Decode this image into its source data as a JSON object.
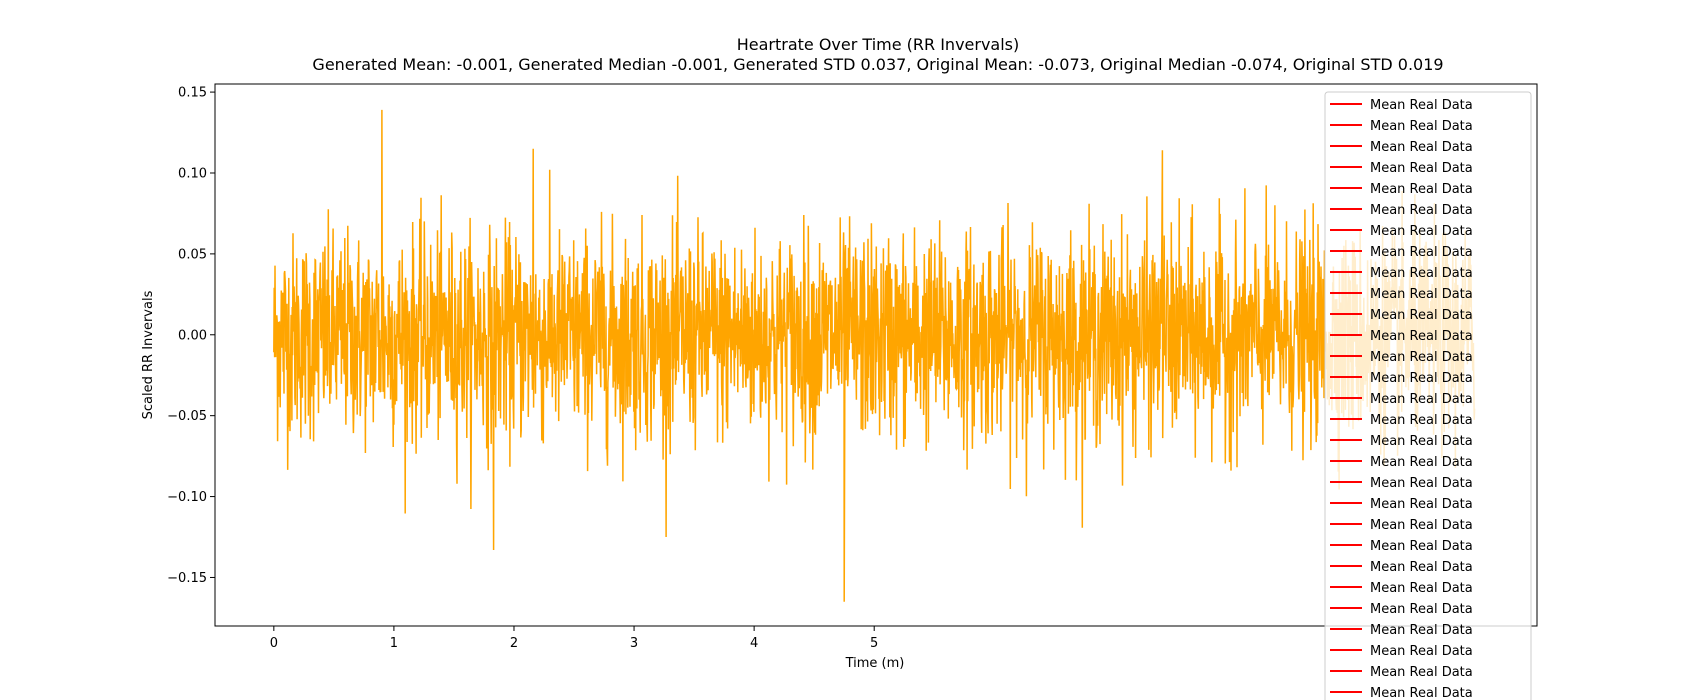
{
  "chart_data": {
    "type": "line",
    "title": "Heartrate Over Time (RR Invervals)",
    "subtitle": "Generated Mean: -0.001, Generated Median -0.001, Generated STD 0.037, Original Mean: -0.073, Original Median -0.074, Original STD 0.019",
    "xlabel": "Time (m)",
    "ylabel": "Scaled RR Invervals",
    "xlim": [
      -0.49,
      10.52
    ],
    "ylim": [
      -0.18,
      0.155
    ],
    "x_ticks": [
      0,
      1,
      2,
      3,
      4,
      5
    ],
    "x_tick_labels": [
      "0",
      "1",
      "2",
      "3",
      "4",
      "5"
    ],
    "y_ticks": [
      0.15,
      0.1,
      0.05,
      0.0,
      -0.05,
      -0.1,
      -0.15
    ],
    "y_tick_labels": [
      "0.15",
      "0.10",
      "0.05",
      "0.00",
      "−0.05",
      "−0.10",
      "−0.15"
    ],
    "grid": false,
    "legend_placement": "top-right",
    "series": [
      {
        "name": "",
        "color": "#FFA500",
        "x_range": [
          0,
          10
        ],
        "mean": -0.001,
        "std": 0.037,
        "y_max": 0.139,
        "y_min": -0.165,
        "notable_points": [
          {
            "x": 0.9,
            "y": 0.139
          },
          {
            "x": 2.16,
            "y": 0.115
          },
          {
            "x": 4.75,
            "y": -0.165
          },
          {
            "x": 1.83,
            "y": -0.133
          },
          {
            "x": 7.4,
            "y": 0.114
          }
        ]
      }
    ],
    "legend": {
      "entry_label": "Mean Real Data",
      "entry_color": "#FF0000",
      "entry_count": 29
    }
  }
}
